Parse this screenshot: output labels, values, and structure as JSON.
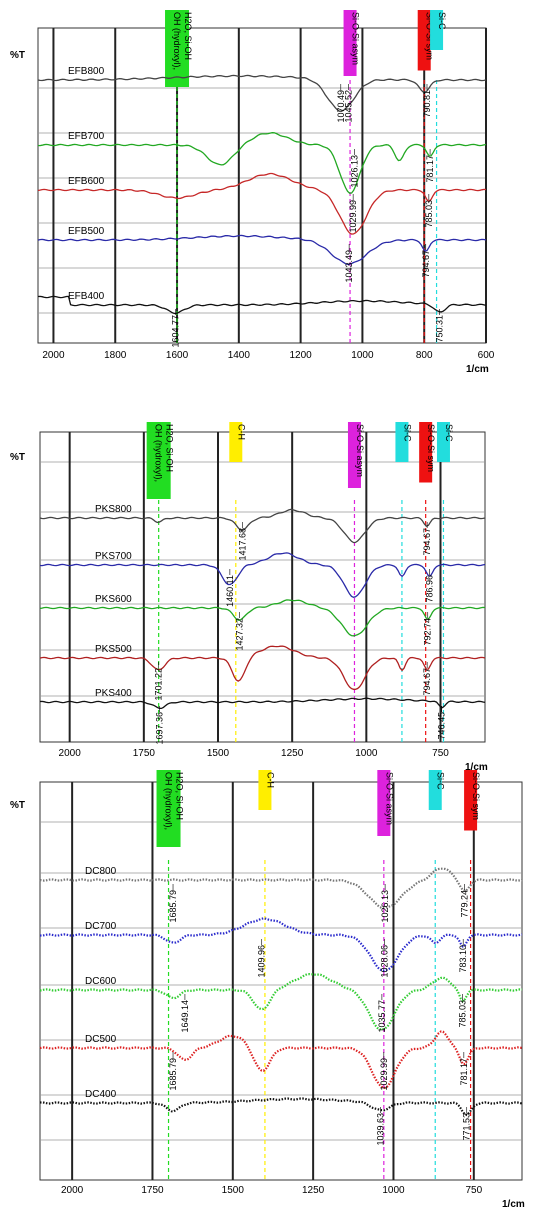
{
  "chart_data": [
    {
      "type": "line",
      "id": "efb",
      "ylabel": "%T",
      "xlabel": "1/cm",
      "xlim": [
        2050,
        600
      ],
      "ticks": [
        2000,
        1800,
        1600,
        1400,
        1200,
        1000,
        800,
        600
      ],
      "series": [
        {
          "name": "EFB800",
          "color": "#444444"
        },
        {
          "name": "EFB700",
          "color": "#22a822"
        },
        {
          "name": "EFB600",
          "color": "#c62828"
        },
        {
          "name": "EFB500",
          "color": "#2a2aa8"
        },
        {
          "name": "EFB400",
          "color": "#111111"
        }
      ],
      "bands": [
        {
          "label": "OH (hydroxyl),\nH2O, Si-OH",
          "x": 1600,
          "color": "#22dd22"
        },
        {
          "label": "Si-O-Si asym",
          "x": 1040,
          "color": "#dd22dd"
        },
        {
          "label": "Si-O-Si sym",
          "x": 800,
          "color": "#ee1111"
        },
        {
          "label": "Si-C",
          "x": 760,
          "color": "#22dddd"
        }
      ],
      "peaks": [
        {
          "label": "1070.49",
          "x": 1070
        },
        {
          "label": "1045.52",
          "x": 1045
        },
        {
          "label": "790.81",
          "x": 791
        },
        {
          "label": "1026.13",
          "x": 1026
        },
        {
          "label": "781.17",
          "x": 781
        },
        {
          "label": "1029.99",
          "x": 1030
        },
        {
          "label": "785.03",
          "x": 785
        },
        {
          "label": "1043.49",
          "x": 1043
        },
        {
          "label": "794.67",
          "x": 795
        },
        {
          "label": "1604.77",
          "x": 1605
        },
        {
          "label": "750.31",
          "x": 750
        }
      ]
    },
    {
      "type": "line",
      "id": "pks",
      "ylabel": "%T",
      "xlabel": "1/cm",
      "xlim": [
        2100,
        600
      ],
      "ticks": [
        2000,
        1750,
        1500,
        1250,
        1000,
        750
      ],
      "series": [
        {
          "name": "PKS800",
          "color": "#444444"
        },
        {
          "name": "PKS700",
          "color": "#2a2aa8"
        },
        {
          "name": "PKS600",
          "color": "#22a822"
        },
        {
          "name": "PKS500",
          "color": "#b02020"
        },
        {
          "name": "PKS400",
          "color": "#111111"
        }
      ],
      "bands": [
        {
          "label": "OH (hydroxyl),\nH2O, Si-OH",
          "x": 1700,
          "color": "#22dd22"
        },
        {
          "label": "C-H",
          "x": 1440,
          "color": "#ffee00"
        },
        {
          "label": "Si-O-Si asym",
          "x": 1040,
          "color": "#dd22dd"
        },
        {
          "label": "Si-C",
          "x": 880,
          "color": "#22dddd"
        },
        {
          "label": "Si-O-Si sym",
          "x": 800,
          "color": "#ee1111"
        },
        {
          "label": "Si-C",
          "x": 740,
          "color": "#22dddd"
        }
      ],
      "peaks": [
        {
          "label": "1417.68",
          "x": 1418
        },
        {
          "label": "794.67",
          "x": 795
        },
        {
          "label": "1460.11",
          "x": 1460
        },
        {
          "label": "786.96",
          "x": 787
        },
        {
          "label": "1427.32",
          "x": 1427
        },
        {
          "label": "792.74",
          "x": 793
        },
        {
          "label": "1701.22",
          "x": 1701
        },
        {
          "label": "794.67",
          "x": 795
        },
        {
          "label": "1697.36",
          "x": 1697
        },
        {
          "label": "746.45",
          "x": 746
        }
      ]
    },
    {
      "type": "line",
      "id": "dc",
      "ylabel": "%T",
      "xlabel": "1/cm",
      "xlim": [
        2100,
        600
      ],
      "ticks": [
        2000,
        1750,
        1500,
        1250,
        1000,
        750
      ],
      "series": [
        {
          "name": "DC800",
          "color": "#777777"
        },
        {
          "name": "DC700",
          "color": "#2a2acc"
        },
        {
          "name": "DC600",
          "color": "#33cc33"
        },
        {
          "name": "DC500",
          "color": "#dd2222"
        },
        {
          "name": "DC400",
          "color": "#111111"
        }
      ],
      "bands": [
        {
          "label": "OH (hydroxyl),\nH2O, Si-OH",
          "x": 1700,
          "color": "#22dd22"
        },
        {
          "label": "C-H",
          "x": 1400,
          "color": "#ffee00"
        },
        {
          "label": "Si-O-Si asym",
          "x": 1030,
          "color": "#dd22dd"
        },
        {
          "label": "Si-C",
          "x": 870,
          "color": "#22dddd"
        },
        {
          "label": "Si-O-Si sym",
          "x": 760,
          "color": "#ee1111"
        }
      ],
      "peaks": [
        {
          "label": "779.24",
          "x": 779
        },
        {
          "label": "1026.13",
          "x": 1026
        },
        {
          "label": "1685.79",
          "x": 1686
        },
        {
          "label": "1409.96",
          "x": 1410
        },
        {
          "label": "783.10",
          "x": 783
        },
        {
          "label": "1028.06",
          "x": 1028
        },
        {
          "label": "1035.77",
          "x": 1036
        },
        {
          "label": "785.03",
          "x": 785
        },
        {
          "label": "1649.14",
          "x": 1649
        },
        {
          "label": "1029.99",
          "x": 1030
        },
        {
          "label": "781.17",
          "x": 781
        },
        {
          "label": "1685.79",
          "x": 1686
        },
        {
          "label": "1039.63",
          "x": 1040
        },
        {
          "label": "771.53",
          "x": 772
        }
      ]
    }
  ]
}
